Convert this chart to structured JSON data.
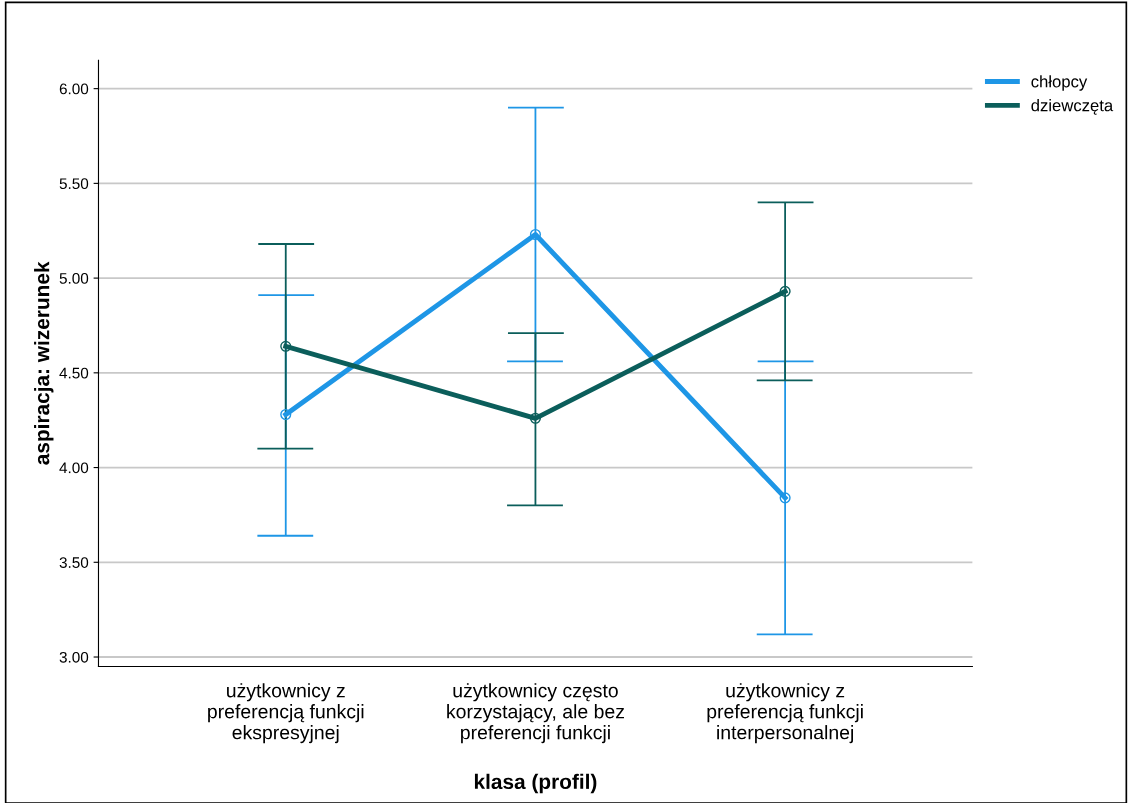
{
  "chart_data": {
    "type": "line",
    "xlabel": "klasa (profil)",
    "ylabel": "aspiracja: wizerunek",
    "categories": [
      "użytkownicy z\npreferencją funkcji\nekspresyjnej",
      "użytkownicy często\nkorzystający, ale bez\npreferencji funkcji",
      "użytkownicy z\npreferencją funkcji\ninterpersonalnej"
    ],
    "series": [
      {
        "name": "chłopcy",
        "color": "#1e96e6",
        "values": [
          4.28,
          5.23,
          3.84
        ],
        "errors": [
          [
            3.64,
            4.91
          ],
          [
            4.56,
            5.9
          ],
          [
            3.12,
            4.56
          ]
        ]
      },
      {
        "name": "dziewczęta",
        "color": "#0b5e5b",
        "values": [
          4.64,
          4.26,
          4.93
        ],
        "errors": [
          [
            4.1,
            5.18
          ],
          [
            3.8,
            4.71
          ],
          [
            4.46,
            5.4
          ]
        ]
      }
    ],
    "ylim": [
      2.95,
      6.15
    ],
    "yticks": [
      {
        "value": 3,
        "label": "3.00"
      },
      {
        "value": 3.5,
        "label": "3.50"
      },
      {
        "value": 4,
        "label": "4.00"
      },
      {
        "value": 4.5,
        "label": "4.50"
      },
      {
        "value": 5,
        "label": "5.00"
      },
      {
        "value": 5.5,
        "label": "5.50"
      },
      {
        "value": 6,
        "label": "6.00"
      }
    ],
    "grid": "y",
    "legend": "top right",
    "marker": "circle",
    "line_style": "solid"
  }
}
